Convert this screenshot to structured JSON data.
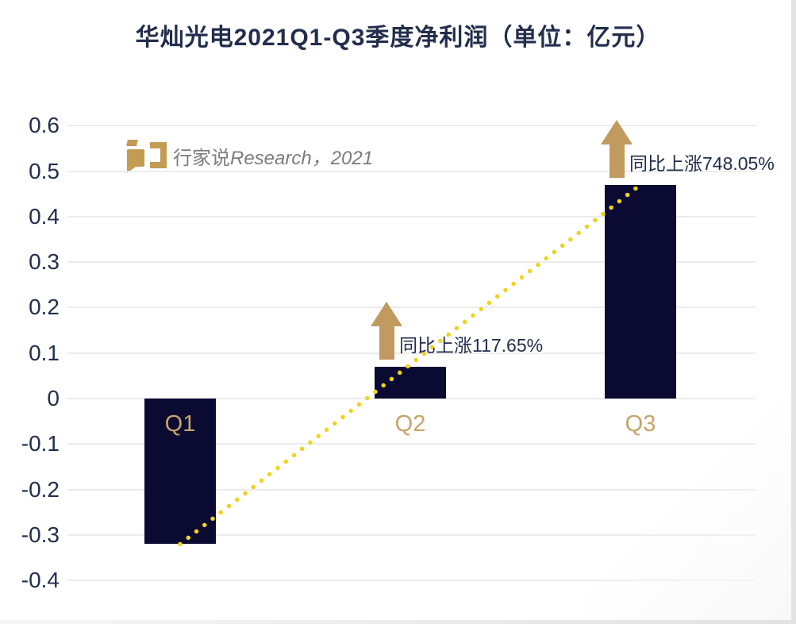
{
  "page": {
    "title": "华灿光电2021Q1-Q3季度净利润（单位：亿元）"
  },
  "watermark": {
    "brand_cn": "行家说",
    "brand_en": "Research，2021",
    "logo_icon": "hangjiashuo-logo"
  },
  "colors": {
    "bar": "#0a0a32",
    "title_text": "#232e4d",
    "axis_text": "#232e4d",
    "category_label": "#c6a469",
    "arrow": "#c09a5e",
    "trendline": "#f0d31d",
    "gridline": "#ececec",
    "watermark_text": "#7c7c7c",
    "logo_gold": "#c49b52"
  },
  "chart_data": {
    "type": "bar",
    "title": "华灿光电2021Q1-Q3季度净利润（单位：亿元）",
    "unit": "亿元",
    "categories": [
      "Q1",
      "Q2",
      "Q3"
    ],
    "values": [
      -0.32,
      0.07,
      0.47
    ],
    "ylim": [
      -0.4,
      0.6
    ],
    "y_ticks": [
      "0.6",
      "0.5",
      "0.4",
      "0.3",
      "0.2",
      "0.1",
      "0",
      "-0.1",
      "-0.2",
      "-0.3",
      "-0.4"
    ],
    "grid": "horizontal",
    "legend": "none",
    "annotations": [
      {
        "category": "Q2",
        "text": "同比上涨117.65%",
        "icon": "up-arrow"
      },
      {
        "category": "Q3",
        "text": "同比上涨748.05%",
        "icon": "up-arrow"
      }
    ],
    "trendline": {
      "type": "dotted",
      "from": "Q1",
      "to": "Q3",
      "color": "#f0d31d"
    }
  }
}
